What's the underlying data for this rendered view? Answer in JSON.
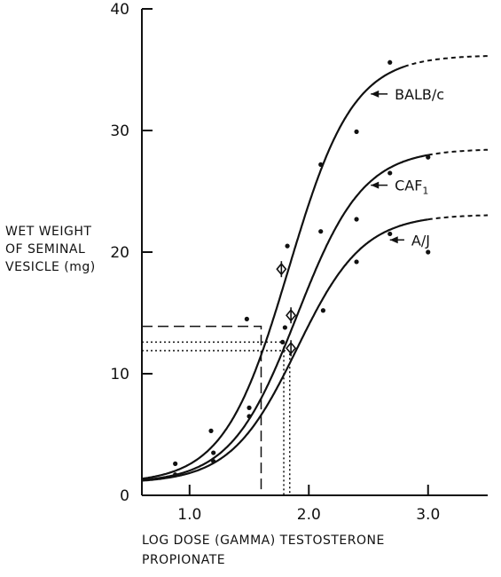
{
  "chart_data": {
    "type": "line",
    "title": "",
    "xlabel": [
      "LOG DOSE (GAMMA) TESTOSTERONE",
      "PROPIONATE"
    ],
    "ylabel": [
      "WET WEIGHT",
      "OF SEMINAL",
      "VESICLE (mg)"
    ],
    "xlim": [
      0.6,
      3.5
    ],
    "ylim": [
      0,
      40
    ],
    "xticks": [
      1.0,
      2.0,
      3.0
    ],
    "xtick_labels": [
      "1.0",
      "2.0",
      "3.0"
    ],
    "yticks": [
      0,
      10,
      20,
      30,
      40
    ],
    "ytick_labels": [
      "0",
      "10",
      "20",
      "30",
      "40"
    ],
    "grid": false,
    "series": [
      {
        "name": "BALB/c",
        "label_text": "BALB/c",
        "curve": {
          "ymin": 1.0,
          "ymax": 36.2,
          "mid": 1.83,
          "slope": 3.7,
          "solid_until": 2.8
        },
        "points": [
          [
            0.88,
            2.6
          ],
          [
            1.18,
            5.3
          ],
          [
            1.48,
            14.5
          ],
          [
            1.82,
            20.5
          ],
          [
            2.1,
            27.2
          ],
          [
            2.4,
            29.9
          ],
          [
            2.68,
            35.6
          ]
        ],
        "ed50": [
          1.77,
          18.6
        ],
        "label_anchor": [
          2.52,
          33.0
        ],
        "label_pos": [
          2.72,
          33.0
        ]
      },
      {
        "name": "CAF1",
        "label_text": "CAF",
        "label_sub": "1",
        "curve": {
          "ymin": 1.0,
          "ymax": 28.5,
          "mid": 1.9,
          "slope": 3.6,
          "solid_until": 3.0
        },
        "points": [
          [
            1.2,
            3.5
          ],
          [
            1.5,
            7.2
          ],
          [
            1.8,
            13.8
          ],
          [
            2.1,
            21.7
          ],
          [
            2.4,
            22.7
          ],
          [
            2.68,
            26.5
          ],
          [
            3.0,
            27.8
          ]
        ],
        "ed50": [
          1.85,
          14.8
        ],
        "label_anchor": [
          2.52,
          25.5
        ],
        "label_pos": [
          2.72,
          25.5
        ]
      },
      {
        "name": "A/J",
        "label_text": "A/J",
        "curve": {
          "ymin": 1.0,
          "ymax": 23.1,
          "mid": 1.9,
          "slope": 3.6,
          "solid_until": 3.0
        },
        "points": [
          [
            0.88,
            1.7
          ],
          [
            1.2,
            2.8
          ],
          [
            1.5,
            6.5
          ],
          [
            1.78,
            12.6
          ],
          [
            2.12,
            15.2
          ],
          [
            2.4,
            19.2
          ],
          [
            2.68,
            21.5
          ],
          [
            3.0,
            20.0
          ]
        ],
        "ed50": [
          1.85,
          12.1
        ],
        "label_anchor": [
          2.68,
          21.0
        ],
        "label_pos": [
          2.86,
          21.0
        ]
      }
    ],
    "reference_lines": [
      {
        "style": "dashed",
        "x": 1.6,
        "y": 13.9
      },
      {
        "style": "dotted",
        "x": 1.79,
        "y": 12.6
      },
      {
        "style": "dotted",
        "x": 1.84,
        "y": 11.9
      }
    ]
  }
}
